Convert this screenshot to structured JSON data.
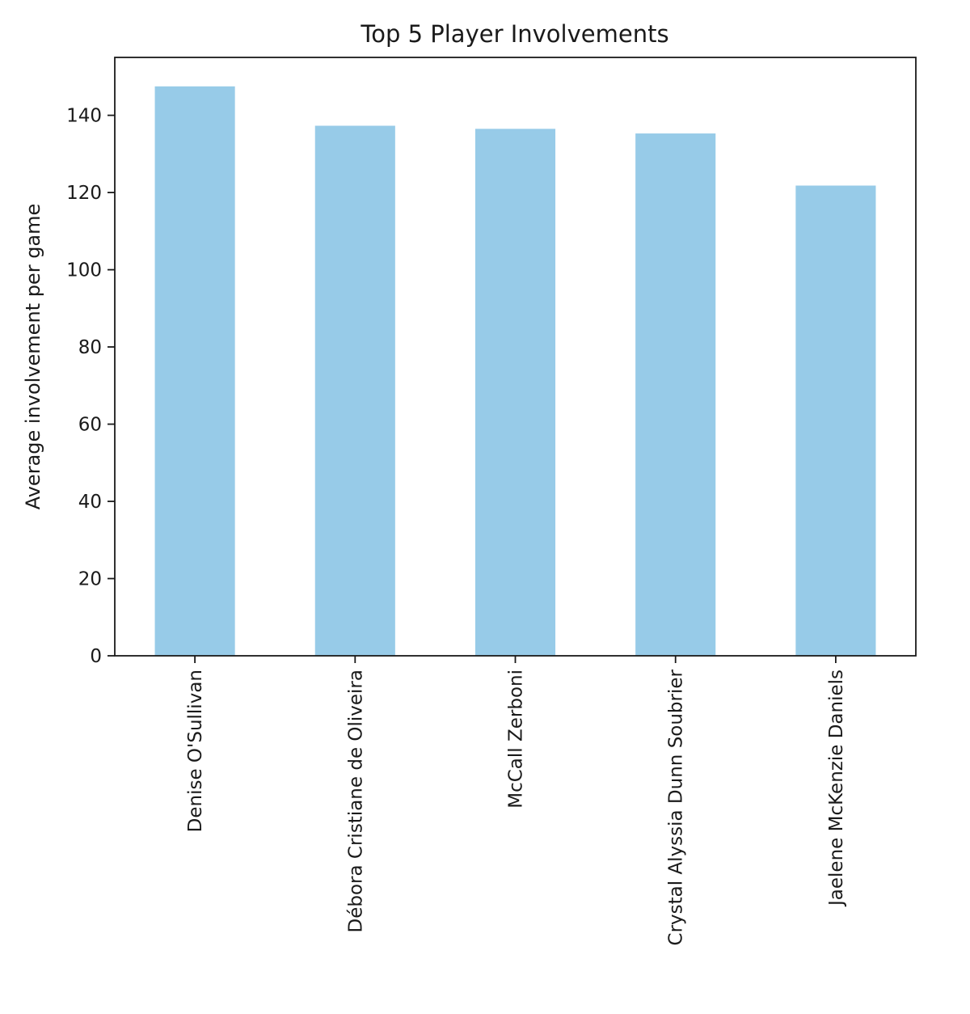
{
  "chart_data": {
    "type": "bar",
    "title": "Top 5 Player Involvements",
    "xlabel": "",
    "ylabel": "Average involvement per game",
    "categories": [
      "Denise O'Sullivan",
      "Débora Cristiane de Oliveira",
      "McCall Zerboni",
      "Crystal Alyssia Dunn Soubrier",
      "Jaelene McKenzie Daniels"
    ],
    "values": [
      147.5,
      137.3,
      136.5,
      135.3,
      121.8
    ],
    "ylim": [
      0,
      155
    ],
    "yticks": [
      0,
      20,
      40,
      60,
      80,
      100,
      120,
      140
    ],
    "grid": false,
    "legend": "none",
    "bar_color": "#97cbe8",
    "axis_color": "#1a1a1a"
  }
}
